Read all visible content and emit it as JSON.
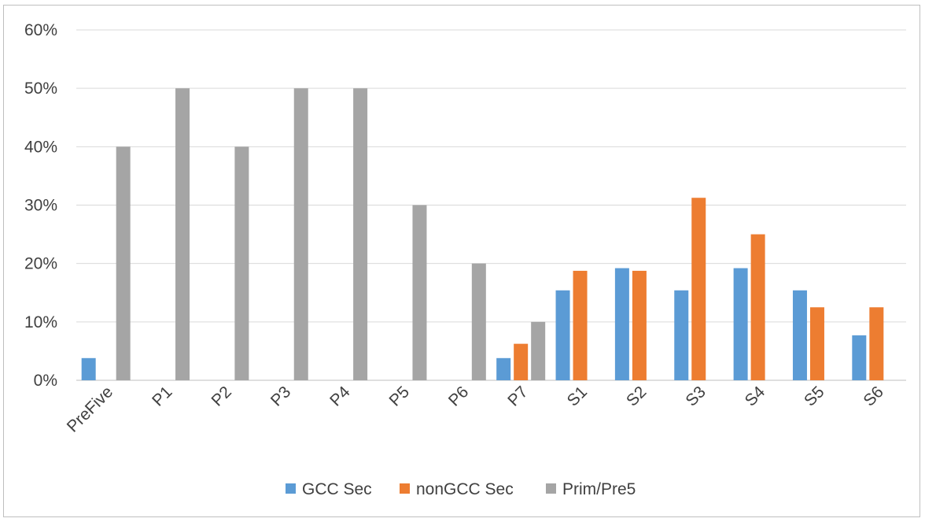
{
  "chart_data": {
    "type": "bar",
    "categories": [
      "PreFive",
      "P1",
      "P2",
      "P3",
      "P4",
      "P5",
      "P6",
      "P7",
      "S1",
      "S2",
      "S3",
      "S4",
      "S5",
      "S6"
    ],
    "series": [
      {
        "name": "GCC Sec",
        "color": "#5b9bd5",
        "values": [
          0.038,
          0,
          0,
          0,
          0,
          0,
          0,
          0.038,
          0.154,
          0.192,
          0.154,
          0.192,
          0.154,
          0.077
        ]
      },
      {
        "name": "nonGCC Sec",
        "color": "#ed7d31",
        "values": [
          0,
          0,
          0,
          0,
          0,
          0,
          0,
          0.0625,
          0.1875,
          0.1875,
          0.3125,
          0.25,
          0.125,
          0.125
        ]
      },
      {
        "name": "Prim/Pre5",
        "color": "#a5a5a5",
        "values": [
          0.4,
          0.5,
          0.4,
          0.5,
          0.5,
          0.3,
          0.2,
          0.1,
          0,
          0,
          0,
          0,
          0,
          0
        ]
      }
    ],
    "ylim": [
      0,
      0.6
    ],
    "yticks": [
      0,
      0.1,
      0.2,
      0.3,
      0.4,
      0.5,
      0.6
    ],
    "ytick_labels": [
      "0%",
      "10%",
      "20%",
      "30%",
      "40%",
      "50%",
      "60%"
    ],
    "title": "",
    "xlabel": "",
    "ylabel": "",
    "grid": true,
    "legend_position": "bottom",
    "gridline_color": "#d9d9d9",
    "axis_color": "#bfbfbf"
  }
}
